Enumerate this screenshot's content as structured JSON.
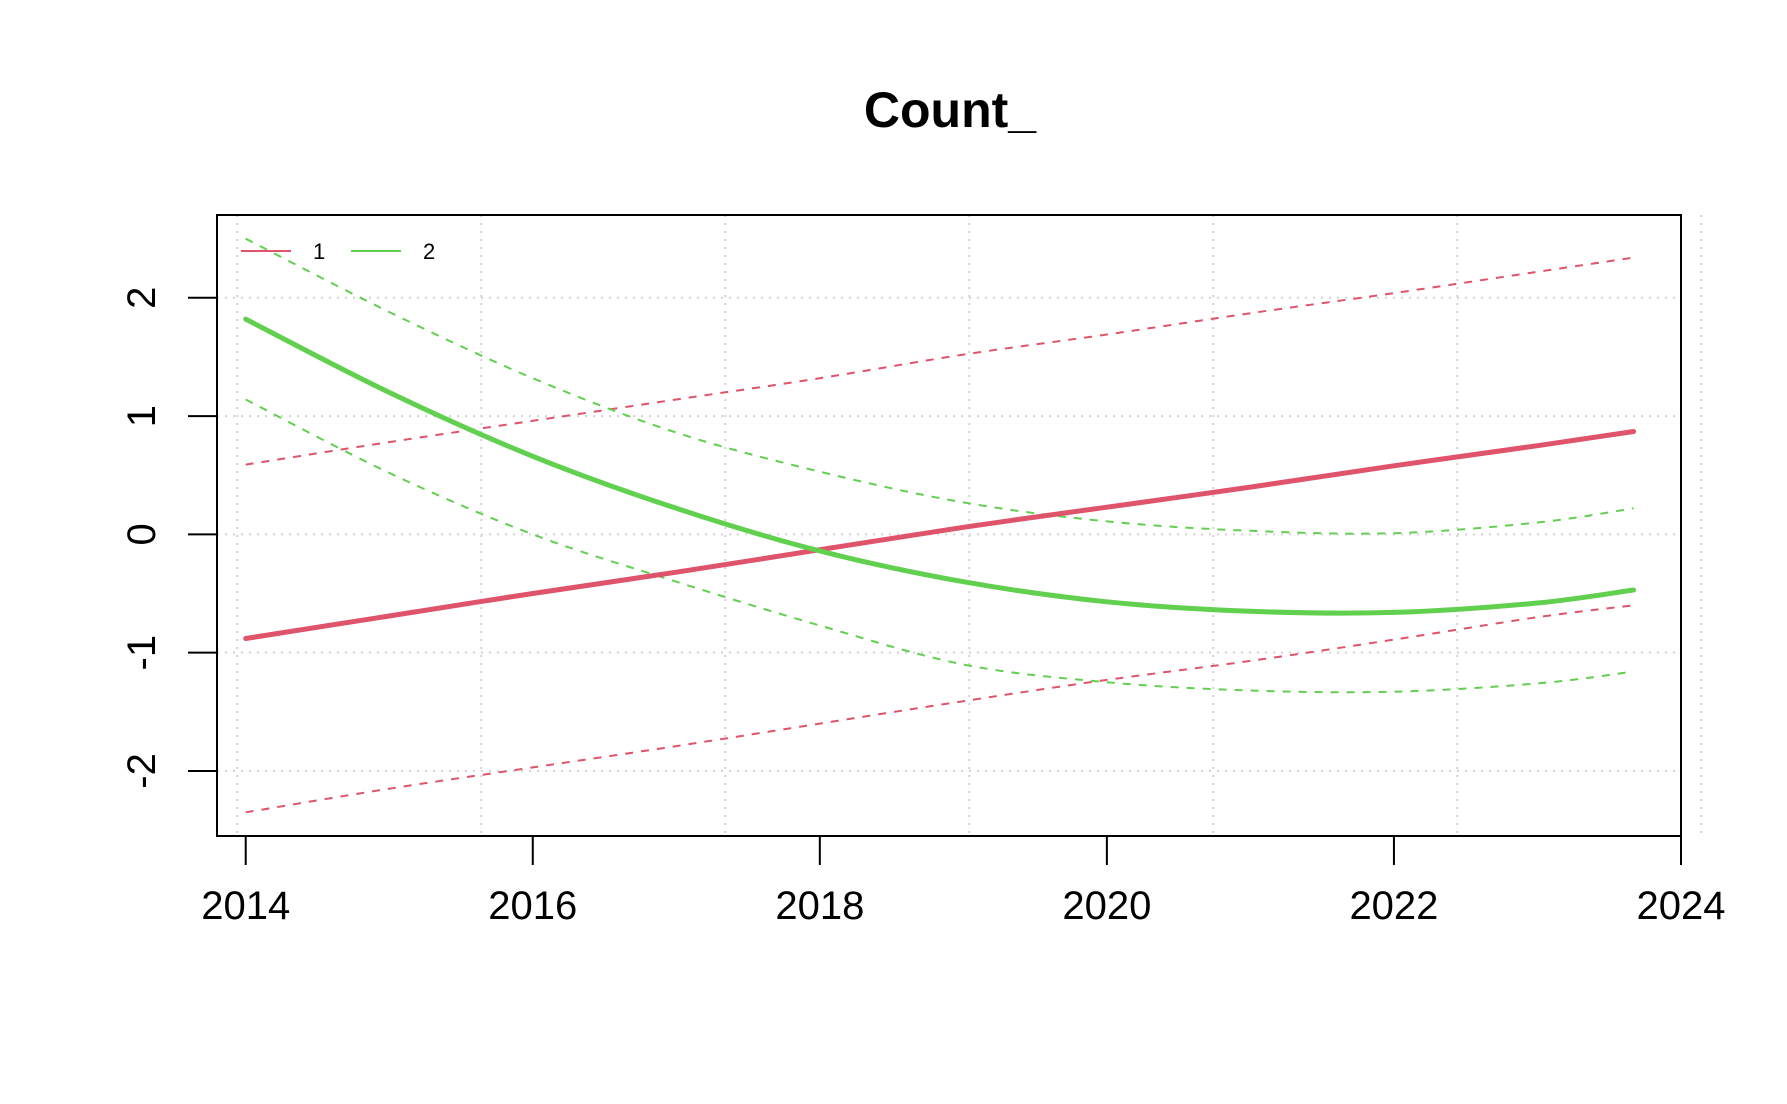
{
  "chart_data": {
    "type": "line",
    "title": "Count_",
    "xlabel": "",
    "ylabel": "",
    "xlim": [
      2013.8,
      2024.0
    ],
    "ylim": [
      -2.55,
      2.7
    ],
    "x_ticks": [
      2014,
      2016,
      2018,
      2020,
      2022,
      2024
    ],
    "x_tick_labels": [
      "2014",
      "2016",
      "2018",
      "2020",
      "2022",
      "2024"
    ],
    "y_ticks": [
      -2,
      -1,
      0,
      1,
      2
    ],
    "y_tick_labels": [
      "-2",
      "-1",
      "0",
      "1",
      "2"
    ],
    "grid": true,
    "legend_position": "top-left",
    "x": [
      2014.0,
      2015.0,
      2016.0,
      2017.0,
      2018.0,
      2019.0,
      2020.0,
      2021.0,
      2022.0,
      2023.0,
      2023.67
    ],
    "series": [
      {
        "name": "1",
        "color": "#DF536B",
        "values": [
          -0.88,
          -0.69,
          -0.5,
          -0.32,
          -0.13,
          0.06,
          0.23,
          0.4,
          0.58,
          0.75,
          0.87
        ],
        "lower": [
          -2.35,
          -2.15,
          -1.97,
          -1.79,
          -1.6,
          -1.41,
          -1.23,
          -1.07,
          -0.89,
          -0.7,
          -0.6
        ],
        "upper": [
          0.59,
          0.78,
          0.96,
          1.14,
          1.32,
          1.52,
          1.69,
          1.87,
          2.04,
          2.22,
          2.34
        ]
      },
      {
        "name": "2",
        "color": "#61D04F",
        "values": [
          1.82,
          1.2,
          0.66,
          0.22,
          -0.14,
          -0.4,
          -0.57,
          -0.65,
          -0.66,
          -0.58,
          -0.47
        ],
        "lower": [
          1.14,
          0.52,
          0.0,
          -0.4,
          -0.77,
          -1.1,
          -1.25,
          -1.32,
          -1.33,
          -1.26,
          -1.16
        ],
        "upper": [
          2.5,
          1.88,
          1.32,
          0.86,
          0.53,
          0.27,
          0.11,
          0.03,
          0.01,
          0.1,
          0.22
        ]
      }
    ]
  }
}
